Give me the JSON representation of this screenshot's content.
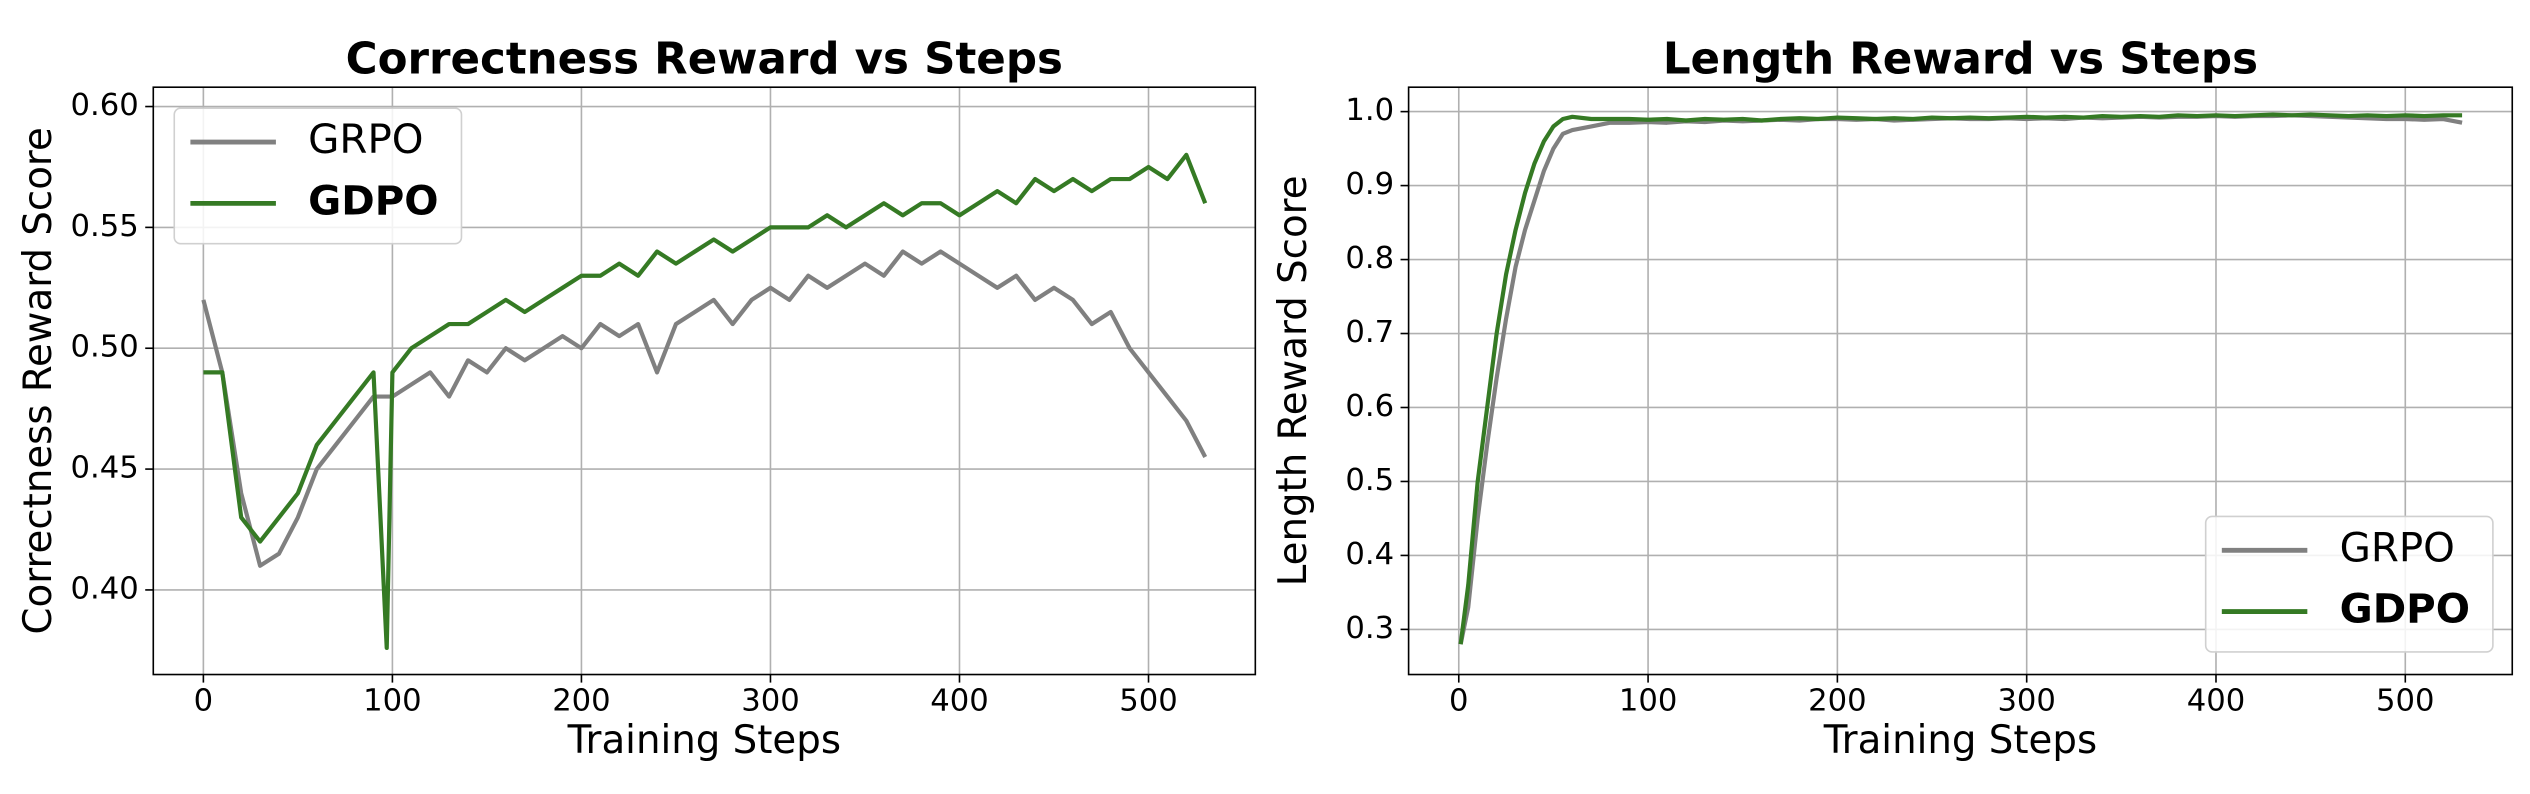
{
  "chart_data": [
    {
      "type": "line",
      "title": "Correctness Reward vs Steps",
      "x_label": "Training Steps",
      "y_label": "Correctness Reward Score",
      "x": [
        0,
        10,
        20,
        30,
        40,
        50,
        60,
        70,
        80,
        90,
        97,
        100,
        110,
        120,
        130,
        140,
        150,
        160,
        170,
        180,
        190,
        200,
        210,
        220,
        230,
        240,
        250,
        260,
        270,
        280,
        290,
        300,
        310,
        320,
        330,
        340,
        350,
        360,
        370,
        380,
        390,
        400,
        410,
        420,
        430,
        440,
        450,
        460,
        470,
        480,
        490,
        500,
        510,
        520,
        530
      ],
      "series": [
        {
          "name": "GRPO",
          "color": "#808080",
          "values": [
            0.52,
            0.49,
            0.44,
            0.41,
            0.415,
            0.43,
            0.45,
            0.46,
            0.47,
            0.48,
            0.48,
            0.48,
            0.485,
            0.49,
            0.48,
            0.495,
            0.49,
            0.5,
            0.495,
            0.5,
            0.505,
            0.5,
            0.51,
            0.505,
            0.51,
            0.49,
            0.51,
            0.515,
            0.52,
            0.51,
            0.52,
            0.525,
            0.52,
            0.53,
            0.525,
            0.53,
            0.535,
            0.53,
            0.54,
            0.535,
            0.54,
            0.535,
            0.53,
            0.525,
            0.53,
            0.52,
            0.525,
            0.52,
            0.51,
            0.515,
            0.5,
            0.49,
            0.48,
            0.47,
            0.455
          ]
        },
        {
          "name": "GDPO",
          "color": "#357a24",
          "values": [
            0.49,
            0.49,
            0.43,
            0.42,
            0.43,
            0.44,
            0.46,
            0.47,
            0.48,
            0.49,
            0.376,
            0.49,
            0.5,
            0.505,
            0.51,
            0.51,
            0.515,
            0.52,
            0.515,
            0.52,
            0.525,
            0.53,
            0.53,
            0.535,
            0.53,
            0.54,
            0.535,
            0.54,
            0.545,
            0.54,
            0.545,
            0.55,
            0.55,
            0.55,
            0.555,
            0.55,
            0.555,
            0.56,
            0.555,
            0.56,
            0.56,
            0.555,
            0.56,
            0.565,
            0.56,
            0.57,
            0.565,
            0.57,
            0.565,
            0.57,
            0.57,
            0.575,
            0.57,
            0.58,
            0.56
          ]
        }
      ],
      "xlim": [
        -26.5,
        556.5
      ],
      "ylim": [
        0.365,
        0.608
      ],
      "xticks": [
        0,
        100,
        200,
        300,
        400,
        500
      ],
      "yticks": [
        {
          "value": 0.4,
          "label": "0.40"
        },
        0.45,
        {
          "value": 0.5,
          "label": "0.50"
        },
        0.55,
        {
          "value": 0.6,
          "label": "0.60"
        }
      ],
      "grid": true,
      "legend_loc": "upper-left"
    },
    {
      "type": "line",
      "title": "Length Reward vs Steps",
      "x_label": "Training Steps",
      "y_label": "Length Reward Score",
      "x": [
        1,
        5,
        10,
        15,
        20,
        25,
        30,
        35,
        40,
        45,
        50,
        55,
        60,
        70,
        80,
        90,
        100,
        110,
        120,
        130,
        140,
        150,
        160,
        170,
        180,
        190,
        200,
        210,
        220,
        230,
        240,
        250,
        260,
        270,
        280,
        290,
        300,
        310,
        320,
        330,
        340,
        350,
        360,
        370,
        380,
        390,
        400,
        410,
        420,
        430,
        440,
        450,
        460,
        470,
        480,
        490,
        500,
        510,
        520,
        530
      ],
      "series": [
        {
          "name": "GRPO",
          "color": "#808080",
          "values": [
            0.28,
            0.33,
            0.45,
            0.55,
            0.64,
            0.72,
            0.79,
            0.84,
            0.88,
            0.92,
            0.95,
            0.97,
            0.975,
            0.98,
            0.985,
            0.985,
            0.986,
            0.985,
            0.987,
            0.986,
            0.988,
            0.987,
            0.988,
            0.989,
            0.988,
            0.99,
            0.99,
            0.989,
            0.99,
            0.988,
            0.989,
            0.99,
            0.991,
            0.99,
            0.99,
            0.991,
            0.99,
            0.991,
            0.99,
            0.992,
            0.991,
            0.992,
            0.993,
            0.992,
            0.993,
            0.993,
            0.994,
            0.993,
            0.994,
            0.994,
            0.995,
            0.994,
            0.993,
            0.992,
            0.991,
            0.99,
            0.99,
            0.989,
            0.99,
            0.985
          ]
        },
        {
          "name": "GDPO",
          "color": "#357a24",
          "values": [
            0.28,
            0.36,
            0.5,
            0.6,
            0.7,
            0.78,
            0.84,
            0.89,
            0.93,
            0.96,
            0.98,
            0.99,
            0.993,
            0.99,
            0.99,
            0.99,
            0.989,
            0.99,
            0.988,
            0.99,
            0.989,
            0.99,
            0.988,
            0.99,
            0.991,
            0.99,
            0.992,
            0.991,
            0.99,
            0.991,
            0.99,
            0.992,
            0.991,
            0.992,
            0.991,
            0.992,
            0.993,
            0.992,
            0.993,
            0.992,
            0.994,
            0.993,
            0.994,
            0.993,
            0.995,
            0.994,
            0.995,
            0.994,
            0.995,
            0.996,
            0.995,
            0.996,
            0.995,
            0.994,
            0.995,
            0.994,
            0.995,
            0.994,
            0.995,
            0.995
          ]
        }
      ],
      "xlim": [
        -26.5,
        556.5
      ],
      "ylim": [
        0.239,
        1.033
      ],
      "xticks": [
        0,
        100,
        200,
        300,
        400,
        500
      ],
      "yticks": [
        0.3,
        0.4,
        0.5,
        0.6,
        0.7,
        0.8,
        0.9,
        {
          "value": 1,
          "label": "1.0"
        }
      ],
      "grid": true,
      "legend_loc": "lower-right"
    }
  ]
}
